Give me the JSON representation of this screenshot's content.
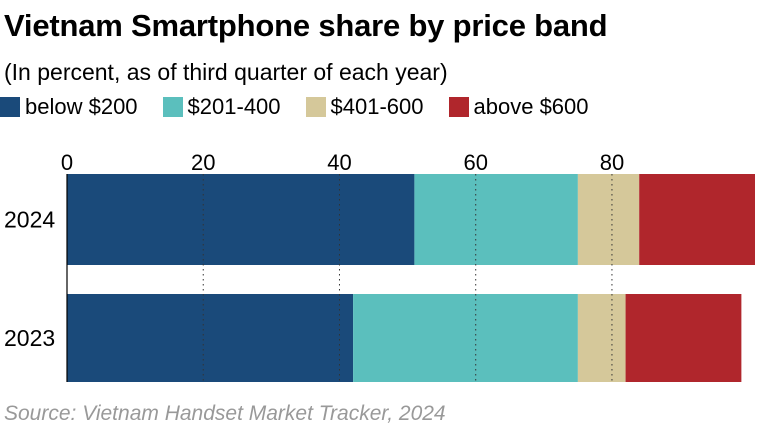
{
  "title": "Vietnam Smartphone share by price band",
  "subtitle": "(In percent, as of third quarter of each year)",
  "source": "Source: Vietnam Handset Market Tracker, 2024",
  "legend": [
    {
      "label": "below $200",
      "color": "#1a4a7a"
    },
    {
      "label": "$201-400",
      "color": "#5bbfbd"
    },
    {
      "label": "$401-600",
      "color": "#d5c89a"
    },
    {
      "label": "above $600",
      "color": "#b0262c"
    }
  ],
  "chart_data": {
    "type": "bar",
    "orientation": "horizontal",
    "stacked": true,
    "categories": [
      "2024",
      "2023"
    ],
    "series": [
      {
        "name": "below $200",
        "color": "#1a4a7a",
        "values": [
          51,
          42
        ]
      },
      {
        "name": "$201-400",
        "color": "#5bbfbd",
        "values": [
          24,
          33
        ]
      },
      {
        "name": "$401-600",
        "color": "#d5c89a",
        "values": [
          9,
          7
        ]
      },
      {
        "name": "above $600",
        "color": "#b0262c",
        "values": [
          17,
          17
        ]
      }
    ],
    "xlim": [
      0,
      101
    ],
    "xticks": [
      0,
      20,
      40,
      60,
      80
    ],
    "tick_position": "top",
    "grid": "dotted vertical",
    "legend_position": "top"
  }
}
